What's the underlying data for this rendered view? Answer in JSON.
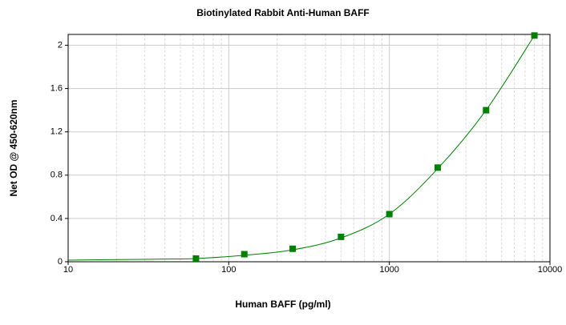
{
  "chart_data": {
    "type": "scatter",
    "title": "Biotinylated Rabbit Anti-Human BAFF",
    "x_label": "Human BAFF (pg/ml)",
    "y_label": "Net OD @ 450-620nm",
    "x_scale": "log",
    "grid": true,
    "color": "#008000",
    "x": [
      62.5,
      125,
      250,
      500,
      1000,
      2000,
      4000,
      8000
    ],
    "values": [
      0.03,
      0.07,
      0.12,
      0.23,
      0.44,
      0.87,
      1.4,
      2.09
    ],
    "fit": {
      "x": [
        10,
        20,
        40,
        62.5,
        125,
        250,
        500,
        1000,
        2000,
        4000,
        8000
      ],
      "values": [
        0.015,
        0.02,
        0.025,
        0.03,
        0.06,
        0.11,
        0.22,
        0.44,
        0.86,
        1.4,
        2.09
      ]
    },
    "xlim": [
      10,
      10000
    ],
    "ylim": [
      0,
      2.1
    ],
    "xticks": [
      10,
      100,
      1000,
      10000
    ],
    "xminor_ticks": [
      20,
      30,
      40,
      50,
      60,
      70,
      80,
      90,
      200,
      300,
      400,
      500,
      600,
      700,
      800,
      900,
      2000,
      3000,
      4000,
      5000,
      6000,
      7000,
      8000,
      9000
    ],
    "yticks": [
      0,
      0.4,
      0.8,
      1.2,
      1.6,
      2
    ]
  }
}
